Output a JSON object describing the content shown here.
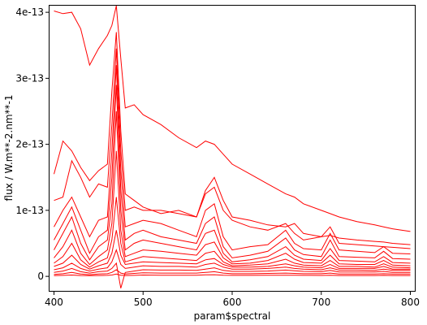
{
  "chart_data": {
    "type": "line",
    "xlabel": "param$spectral",
    "ylabel": "flux / W.m**-2.nm**-1",
    "xlim": [
      395,
      805
    ],
    "ylim": [
      -2.2e-14,
      4.1e-13
    ],
    "x_ticks": [
      {
        "value": 400,
        "label": "400"
      },
      {
        "value": 500,
        "label": "500"
      },
      {
        "value": 600,
        "label": "600"
      },
      {
        "value": 700,
        "label": "700"
      },
      {
        "value": 800,
        "label": "800"
      }
    ],
    "y_ticks": [
      {
        "value": 0,
        "label": "0"
      },
      {
        "value": 1e-13,
        "label": "1e-13"
      },
      {
        "value": 2e-13,
        "label": "2e-13"
      },
      {
        "value": 3e-13,
        "label": "3e-13"
      },
      {
        "value": 4e-13,
        "label": "4e-13"
      }
    ],
    "grid": false,
    "line_color": "#ff0000",
    "x": [
      400,
      410,
      420,
      430,
      440,
      450,
      460,
      465,
      470,
      475,
      480,
      490,
      500,
      520,
      540,
      560,
      570,
      580,
      590,
      600,
      620,
      640,
      660,
      670,
      680,
      700,
      710,
      720,
      740,
      760,
      770,
      780,
      800
    ],
    "series": [
      {
        "values": [
          4.02e-13,
          3.98e-13,
          4e-13,
          3.75e-13,
          3.2e-13,
          3.45e-13,
          3.65e-13,
          3.8e-13,
          4.1e-13,
          3.3e-13,
          2.55e-13,
          2.6e-13,
          2.45e-13,
          2.3e-13,
          2.1e-13,
          1.95e-13,
          2.05e-13,
          2e-13,
          1.85e-13,
          1.7e-13,
          1.55e-13,
          1.4e-13,
          1.25e-13,
          1.2e-13,
          1.1e-13,
          1e-13,
          9.5e-14,
          9e-14,
          8.3e-14,
          7.8e-14,
          7.5e-14,
          7.2e-14,
          6.8e-14
        ]
      },
      {
        "values": [
          1.55e-13,
          2.05e-13,
          1.9e-13,
          1.65e-13,
          1.45e-13,
          1.6e-13,
          1.7e-13,
          2.8e-13,
          3.7e-13,
          2.2e-13,
          1.25e-13,
          1.15e-13,
          1.05e-13,
          9.5e-14,
          1e-13,
          9e-14,
          1.3e-13,
          1.5e-13,
          1.15e-13,
          9e-14,
          8.5e-14,
          7.8e-14,
          7.5e-14,
          8e-14,
          6.5e-14,
          6e-14,
          6.2e-14,
          5.8e-14,
          5.5e-14,
          5.3e-14,
          5.2e-14,
          5e-14,
          4.8e-14
        ]
      },
      {
        "values": [
          1.15e-13,
          1.2e-13,
          1.75e-13,
          1.5e-13,
          1.2e-13,
          1.4e-13,
          1.35e-13,
          2.3e-13,
          3.45e-13,
          1.9e-13,
          1e-13,
          1.05e-13,
          1e-13,
          1e-13,
          9.5e-14,
          9e-14,
          1.25e-13,
          1.35e-13,
          1e-13,
          8.5e-14,
          7.5e-14,
          7e-14,
          8e-14,
          6.5e-14,
          5.5e-14,
          6e-14,
          7.5e-14,
          5e-14,
          4.8e-14,
          4.6e-14,
          4.5e-14,
          4.4e-14,
          4.2e-14
        ]
      },
      {
        "values": [
          7.5e-14,
          1e-13,
          1.2e-13,
          9e-14,
          6e-14,
          8.5e-14,
          9e-14,
          1.9e-13,
          3.2e-13,
          1.6e-13,
          7.5e-14,
          8e-14,
          8.5e-14,
          8e-14,
          7e-14,
          6e-14,
          1e-13,
          1.1e-13,
          6e-14,
          4e-14,
          4.5e-14,
          4.8e-14,
          7e-14,
          5e-14,
          4.2e-14,
          4e-14,
          6.5e-14,
          4e-14,
          3.8e-14,
          3.6e-14,
          4.5e-14,
          3.5e-14,
          3.4e-14
        ]
      },
      {
        "values": [
          5.5e-14,
          8e-14,
          1.05e-13,
          7e-14,
          3.5e-14,
          6e-14,
          7e-14,
          1.5e-13,
          2.9e-13,
          1.3e-13,
          5.5e-14,
          6.5e-14,
          7e-14,
          6e-14,
          5.5e-14,
          5e-14,
          8e-14,
          9e-14,
          4.5e-14,
          2.8e-14,
          3.2e-14,
          3.8e-14,
          5.8e-14,
          4e-14,
          3.3e-14,
          3e-14,
          5.5e-14,
          3e-14,
          2.9e-14,
          2.8e-14,
          3.8e-14,
          2.7e-14,
          2.6e-14
        ]
      },
      {
        "values": [
          4e-14,
          6.5e-14,
          9e-14,
          5e-14,
          2.5e-14,
          4.5e-14,
          5.5e-14,
          1.1e-13,
          2.5e-13,
          1e-13,
          4e-14,
          5e-14,
          5.5e-14,
          5e-14,
          4.5e-14,
          4e-14,
          6.5e-14,
          7e-14,
          3.5e-14,
          2.2e-14,
          2.5e-14,
          3e-14,
          4.5e-14,
          3.2e-14,
          2.6e-14,
          2.4e-14,
          4.2e-14,
          2.4e-14,
          2.3e-14,
          2.2e-14,
          3e-14,
          2.1e-14,
          2e-14
        ]
      },
      {
        "values": [
          2.8e-14,
          4.5e-14,
          7e-14,
          3.5e-14,
          1.8e-14,
          3e-14,
          4e-14,
          8e-14,
          1.9e-13,
          7e-14,
          3e-14,
          3.5e-14,
          4e-14,
          3.8e-14,
          3.5e-14,
          3.2e-14,
          4.8e-14,
          5.2e-14,
          2.8e-14,
          1.9e-14,
          2e-14,
          2.4e-14,
          3.5e-14,
          2.6e-14,
          2.1e-14,
          2e-14,
          3.2e-14,
          1.9e-14,
          1.8e-14,
          1.8e-14,
          2.4e-14,
          1.7e-14,
          1.6e-14
        ]
      },
      {
        "values": [
          2e-14,
          3e-14,
          5e-14,
          2.5e-14,
          1.4e-14,
          2.2e-14,
          2.8e-14,
          5.5e-14,
          1.2e-13,
          5e-14,
          2.2e-14,
          2.6e-14,
          3e-14,
          2.8e-14,
          2.6e-14,
          2.4e-14,
          3.5e-14,
          3.8e-14,
          2.2e-14,
          1.6e-14,
          1.7e-14,
          1.9e-14,
          2.6e-14,
          2e-14,
          1.7e-14,
          1.6e-14,
          2.4e-14,
          1.5e-14,
          1.5e-14,
          1.4e-14,
          1.9e-14,
          1.4e-14,
          1.3e-14
        ]
      },
      {
        "values": [
          1.5e-14,
          2e-14,
          3.2e-14,
          1.8e-14,
          1.1e-14,
          1.6e-14,
          2e-14,
          3.5e-14,
          7e-14,
          3.2e-14,
          1.8e-14,
          2e-14,
          2.2e-14,
          2.1e-14,
          2e-14,
          1.9e-14,
          2.5e-14,
          2.7e-14,
          1.8e-14,
          1.4e-14,
          1.4e-14,
          1.5e-14,
          1.9e-14,
          1.6e-14,
          1.4e-14,
          1.3e-14,
          1.8e-14,
          1.2e-14,
          1.2e-14,
          1.2e-14,
          1.5e-14,
          1.1e-14,
          1.1e-14
        ]
      },
      {
        "values": [
          1e-14,
          1.3e-14,
          2e-14,
          1.2e-14,
          8e-15,
          1.1e-14,
          1.3e-14,
          2.2e-14,
          4e-14,
          1.8e-14,
          1.2e-14,
          1.4e-14,
          1.6e-14,
          1.5e-14,
          1.5e-14,
          1.4e-14,
          1.8e-14,
          2e-14,
          1.4e-14,
          1.1e-14,
          1.1e-14,
          1.2e-14,
          1.4e-14,
          1.2e-14,
          1.1e-14,
          1e-14,
          1.3e-14,
          9.5e-15,
          9.5e-15,
          9e-15,
          1.1e-14,
          9e-15,
          9e-15
        ]
      },
      {
        "values": [
          6e-15,
          8e-15,
          1.2e-14,
          7e-15,
          5e-15,
          7e-15,
          8e-15,
          1.2e-14,
          2e-14,
          -1.8e-14,
          6e-15,
          8e-15,
          1e-14,
          9.5e-15,
          9.5e-15,
          9e-15,
          1.1e-14,
          1.3e-14,
          9e-15,
          7.5e-15,
          7.5e-15,
          8e-15,
          9.5e-15,
          8.5e-15,
          7.5e-15,
          7e-15,
          9e-15,
          6.5e-15,
          6.5e-15,
          6.5e-15,
          7.5e-15,
          6e-15,
          6e-15
        ]
      },
      {
        "values": [
          3e-15,
          4e-15,
          6e-15,
          3.5e-15,
          2.5e-15,
          3.5e-15,
          4e-15,
          6e-15,
          1e-14,
          5e-15,
          3.5e-15,
          4.5e-15,
          5.5e-15,
          5e-15,
          5e-15,
          5e-15,
          6e-15,
          7e-15,
          5e-15,
          4e-15,
          4e-15,
          4.5e-15,
          5e-15,
          4.5e-15,
          4e-15,
          4e-15,
          5e-15,
          3.5e-15,
          3.5e-15,
          3.5e-15,
          4e-15,
          3.5e-15,
          3.5e-15
        ]
      },
      {
        "values": [
          1e-15,
          1.5e-15,
          2e-15,
          1.2e-15,
          1e-15,
          1.2e-15,
          1.5e-15,
          2e-15,
          3.5e-15,
          1.8e-15,
          1.2e-15,
          1.5e-15,
          2e-15,
          1.8e-15,
          1.8e-15,
          1.8e-15,
          2.2e-15,
          2.5e-15,
          1.8e-15,
          1.5e-15,
          1.5e-15,
          1.6e-15,
          1.8e-15,
          1.6e-15,
          1.5e-15,
          1.4e-15,
          1.8e-15,
          1.3e-15,
          1.3e-15,
          1.3e-15,
          1.5e-15,
          1.2e-15,
          1.2e-15
        ]
      }
    ]
  }
}
